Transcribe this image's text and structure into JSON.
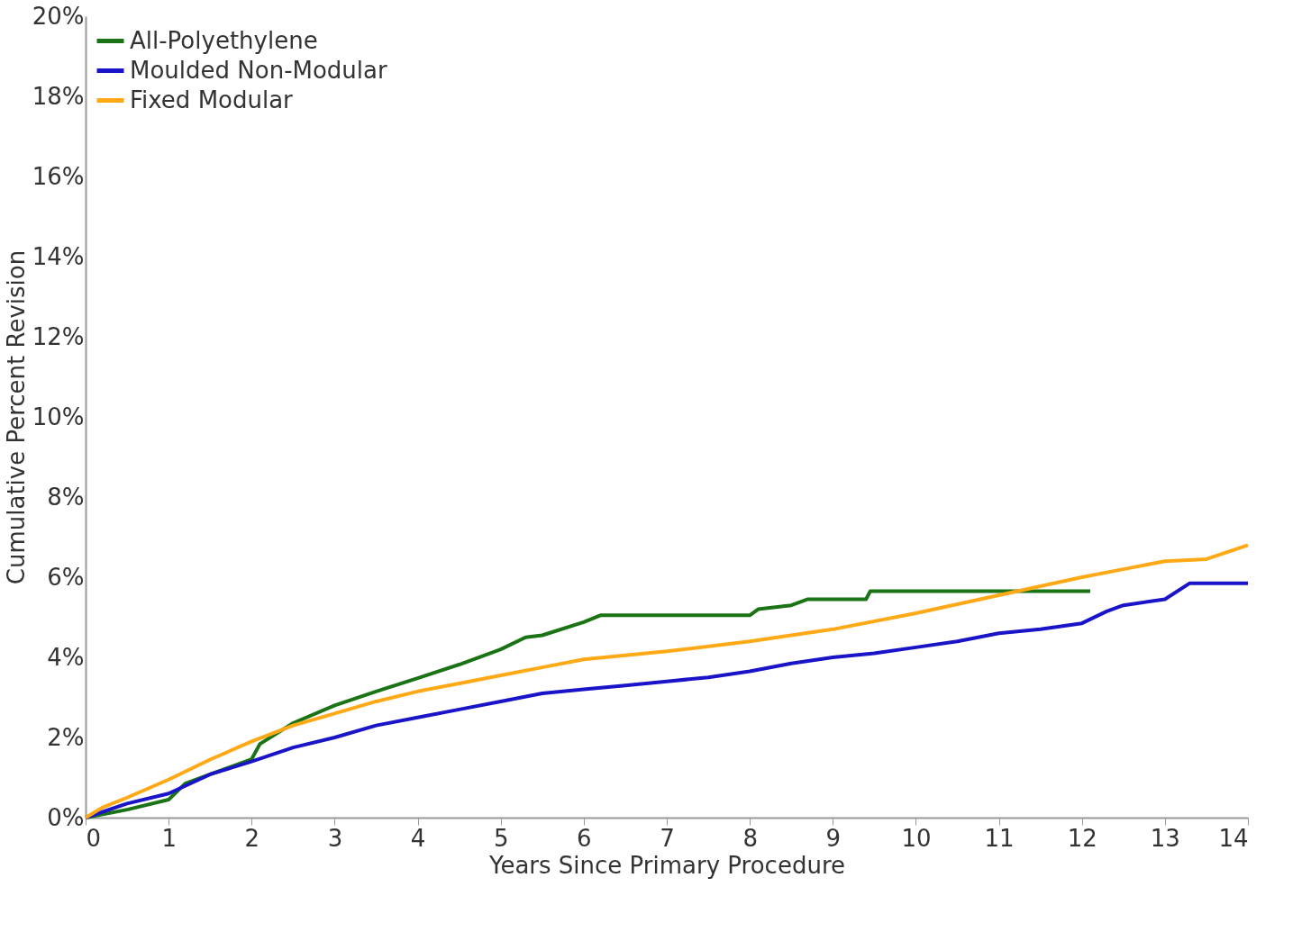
{
  "chart_data": {
    "type": "line",
    "xlabel": "Years Since Primary Procedure",
    "ylabel": "Cumulative Percent Revision",
    "xlim": [
      0,
      14
    ],
    "xticks": [
      0,
      1,
      2,
      3,
      4,
      5,
      6,
      7,
      8,
      9,
      10,
      11,
      12,
      13,
      14
    ],
    "ylim": [
      0,
      20
    ],
    "yticks": [
      {
        "value": 0,
        "label": "0%"
      },
      {
        "value": 2,
        "label": "2%"
      },
      {
        "value": 4,
        "label": "4%"
      },
      {
        "value": 6,
        "label": "6%"
      },
      {
        "value": 8,
        "label": "8%"
      },
      {
        "value": 10,
        "label": "10%"
      },
      {
        "value": 12,
        "label": "12%"
      },
      {
        "value": 14,
        "label": "14%"
      },
      {
        "value": 16,
        "label": "16%"
      },
      {
        "value": 18,
        "label": "18%"
      },
      {
        "value": 20,
        "label": "20%"
      }
    ],
    "grid": false,
    "legend": "top left",
    "line_style": "solid",
    "marker": "none",
    "series": [
      {
        "name": "All-Polyethylene",
        "color": "#1a7314",
        "x": [
          0,
          0.5,
          1,
          1.2,
          1.5,
          2,
          2.1,
          2.5,
          3,
          3.5,
          4,
          4.5,
          5,
          5.3,
          5.5,
          6,
          6.2,
          8,
          8.1,
          8.5,
          8.7,
          9.4,
          9.45,
          12.1
        ],
        "values": [
          0,
          0.2,
          0.45,
          0.85,
          1.08,
          1.46,
          1.84,
          2.36,
          2.8,
          3.15,
          3.48,
          3.82,
          4.2,
          4.5,
          4.55,
          4.88,
          5.05,
          5.05,
          5.2,
          5.3,
          5.45,
          5.45,
          5.65,
          5.65
        ]
      },
      {
        "name": "Moulded Non-Modular",
        "color": "#1a14c8",
        "x": [
          0,
          0.5,
          1,
          1.5,
          2,
          2.5,
          3,
          3.5,
          4,
          4.5,
          5,
          5.5,
          6,
          6.5,
          7,
          7.5,
          8,
          8.5,
          9,
          9.5,
          10,
          10.5,
          11,
          11.5,
          12,
          12.3,
          12.5,
          13,
          13.3,
          14
        ],
        "values": [
          0,
          0.35,
          0.6,
          1.08,
          1.4,
          1.75,
          2.0,
          2.3,
          2.5,
          2.7,
          2.9,
          3.1,
          3.2,
          3.3,
          3.4,
          3.5,
          3.65,
          3.85,
          4.0,
          4.1,
          4.25,
          4.4,
          4.6,
          4.7,
          4.85,
          5.15,
          5.3,
          5.45,
          5.85,
          5.85
        ]
      },
      {
        "name": "Fixed Modular",
        "color": "#ffa916",
        "x": [
          0,
          0.2,
          0.5,
          1,
          1.5,
          2,
          2.5,
          3,
          3.5,
          4,
          4.5,
          5,
          5.5,
          6,
          7,
          8,
          9,
          10,
          11,
          12,
          12.5,
          13,
          13.5,
          14
        ],
        "values": [
          0,
          0.25,
          0.5,
          0.95,
          1.45,
          1.9,
          2.3,
          2.6,
          2.9,
          3.15,
          3.35,
          3.55,
          3.75,
          3.95,
          4.15,
          4.4,
          4.7,
          5.1,
          5.55,
          6.0,
          6.2,
          6.4,
          6.45,
          6.8
        ]
      }
    ]
  }
}
